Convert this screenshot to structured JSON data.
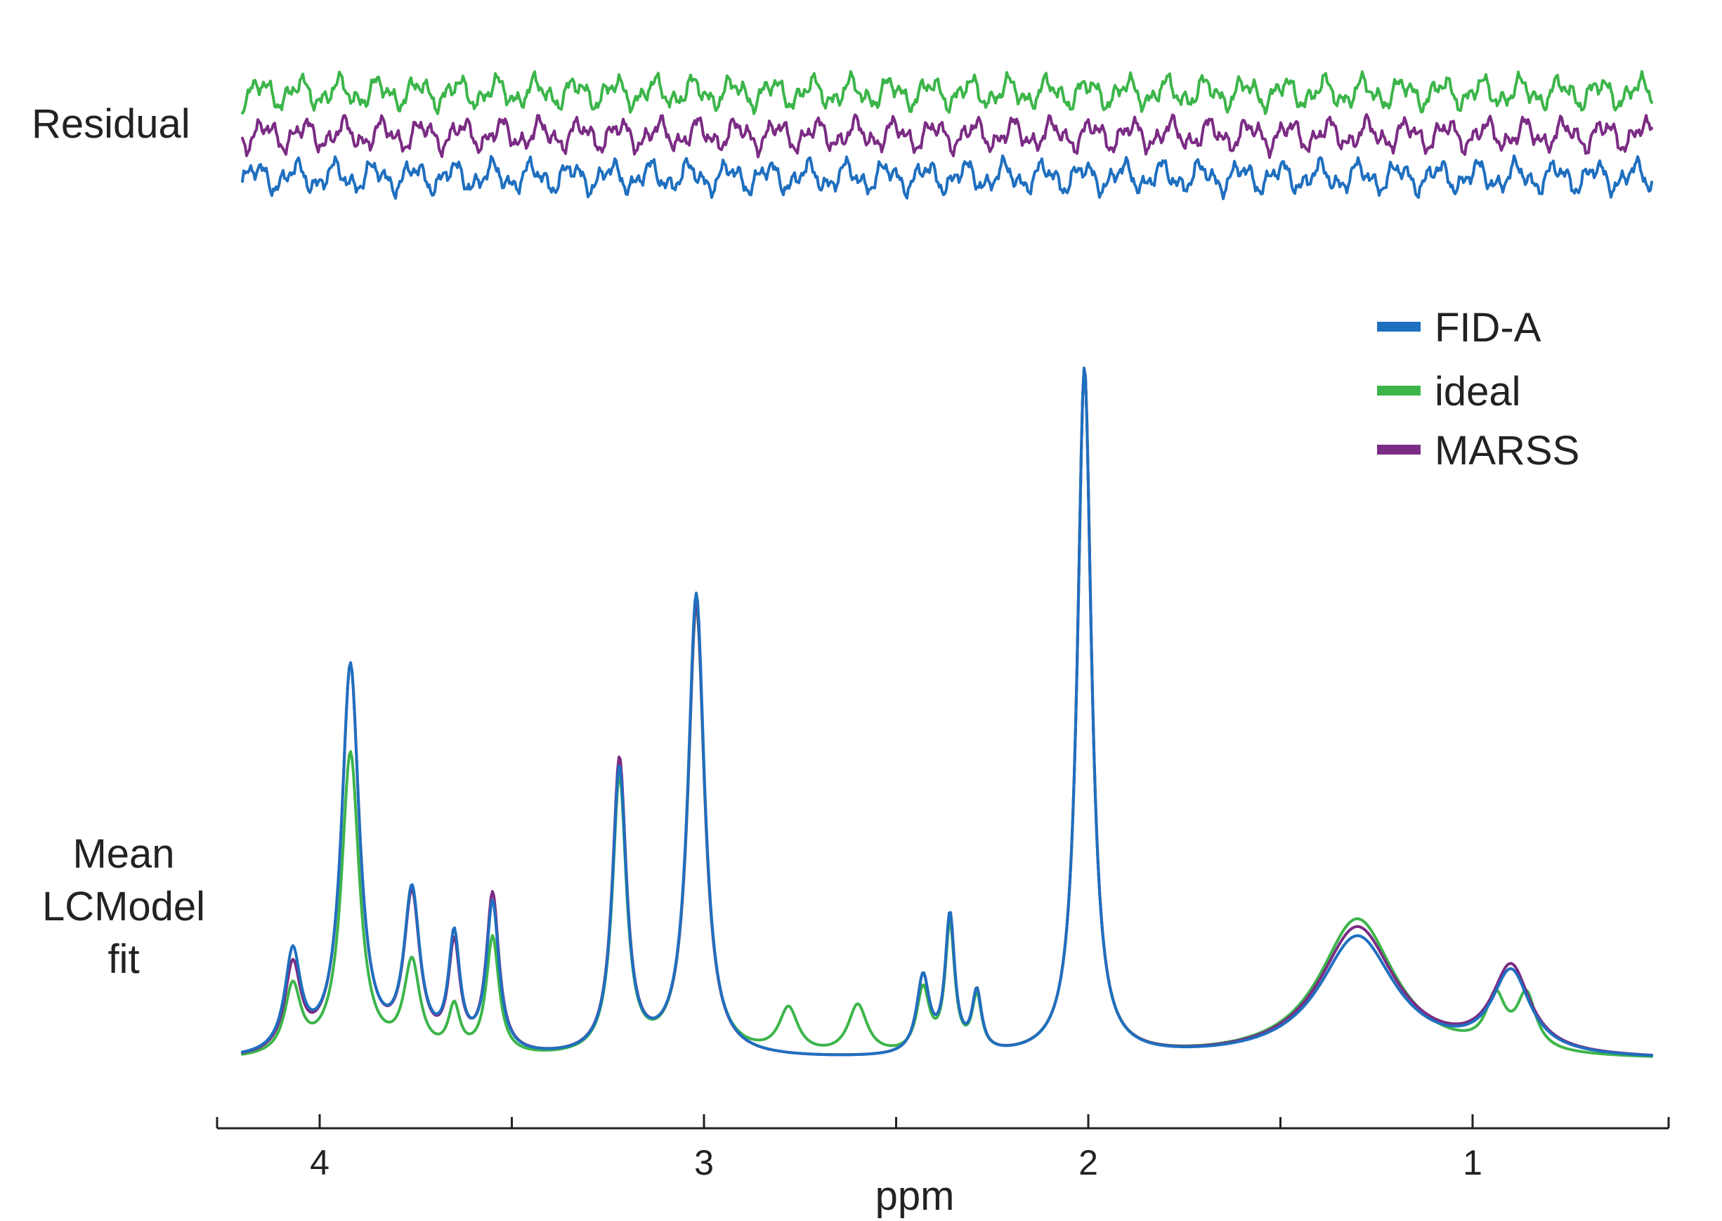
{
  "chart_data": {
    "type": "line",
    "title": "",
    "xlabel": "ppm",
    "ylabel": "",
    "xlim": [
      4.2,
      0.5
    ],
    "x_reversed": true,
    "x_ticks": [
      4,
      3,
      2,
      1
    ],
    "x_tick_labels": [
      "4",
      "3",
      "2",
      "1"
    ],
    "x_minor_ticks": [
      3.5,
      2.5,
      1.5
    ],
    "grid": false,
    "legend_position": "top-right",
    "panel_labels": {
      "residual": "Residual",
      "fit": [
        "Mean",
        "LCModel",
        "fit"
      ]
    },
    "colors": {
      "FID-A": "#1f6fbf",
      "ideal": "#3cb54a",
      "MARSS": "#7b2c84",
      "axis": "#222222"
    },
    "series": [
      {
        "name": "FID-A",
        "peaks": [
          [
            4.07,
            0.22,
            0.025
          ],
          [
            3.92,
            0.86,
            0.028
          ],
          [
            3.76,
            0.35,
            0.025
          ],
          [
            3.65,
            0.25,
            0.018
          ],
          [
            3.55,
            0.33,
            0.02
          ],
          [
            3.22,
            0.63,
            0.022
          ],
          [
            3.02,
            1.02,
            0.026
          ],
          [
            2.43,
            0.17,
            0.02
          ],
          [
            2.36,
            0.3,
            0.015
          ],
          [
            2.29,
            0.13,
            0.015
          ],
          [
            2.01,
            1.52,
            0.022
          ],
          [
            1.3,
            0.27,
            0.12
          ],
          [
            0.9,
            0.18,
            0.06
          ]
        ],
        "residual_offset": 0
      },
      {
        "name": "ideal",
        "peaks": [
          [
            4.07,
            0.15,
            0.025
          ],
          [
            3.92,
            0.67,
            0.028
          ],
          [
            3.76,
            0.2,
            0.025
          ],
          [
            3.65,
            0.1,
            0.018
          ],
          [
            3.55,
            0.26,
            0.02
          ],
          [
            3.22,
            0.61,
            0.022
          ],
          [
            3.02,
            0.99,
            0.026
          ],
          [
            2.78,
            0.1,
            0.03
          ],
          [
            2.6,
            0.11,
            0.03
          ],
          [
            2.43,
            0.14,
            0.02
          ],
          [
            2.36,
            0.28,
            0.015
          ],
          [
            2.29,
            0.12,
            0.015
          ],
          [
            2.01,
            1.52,
            0.022
          ],
          [
            1.3,
            0.31,
            0.12
          ],
          [
            0.94,
            0.11,
            0.03
          ],
          [
            0.86,
            0.12,
            0.03
          ]
        ],
        "residual_offset": 1
      },
      {
        "name": "MARSS",
        "peaks": [
          [
            4.07,
            0.19,
            0.025
          ],
          [
            3.92,
            0.86,
            0.028
          ],
          [
            3.76,
            0.34,
            0.025
          ],
          [
            3.65,
            0.23,
            0.018
          ],
          [
            3.55,
            0.35,
            0.02
          ],
          [
            3.22,
            0.65,
            0.022
          ],
          [
            3.02,
            1.0,
            0.026
          ],
          [
            2.43,
            0.17,
            0.02
          ],
          [
            2.36,
            0.3,
            0.015
          ],
          [
            2.29,
            0.13,
            0.015
          ],
          [
            2.01,
            1.52,
            0.022
          ],
          [
            1.3,
            0.29,
            0.12
          ],
          [
            0.9,
            0.19,
            0.06
          ]
        ],
        "residual_offset": 2
      }
    ]
  }
}
